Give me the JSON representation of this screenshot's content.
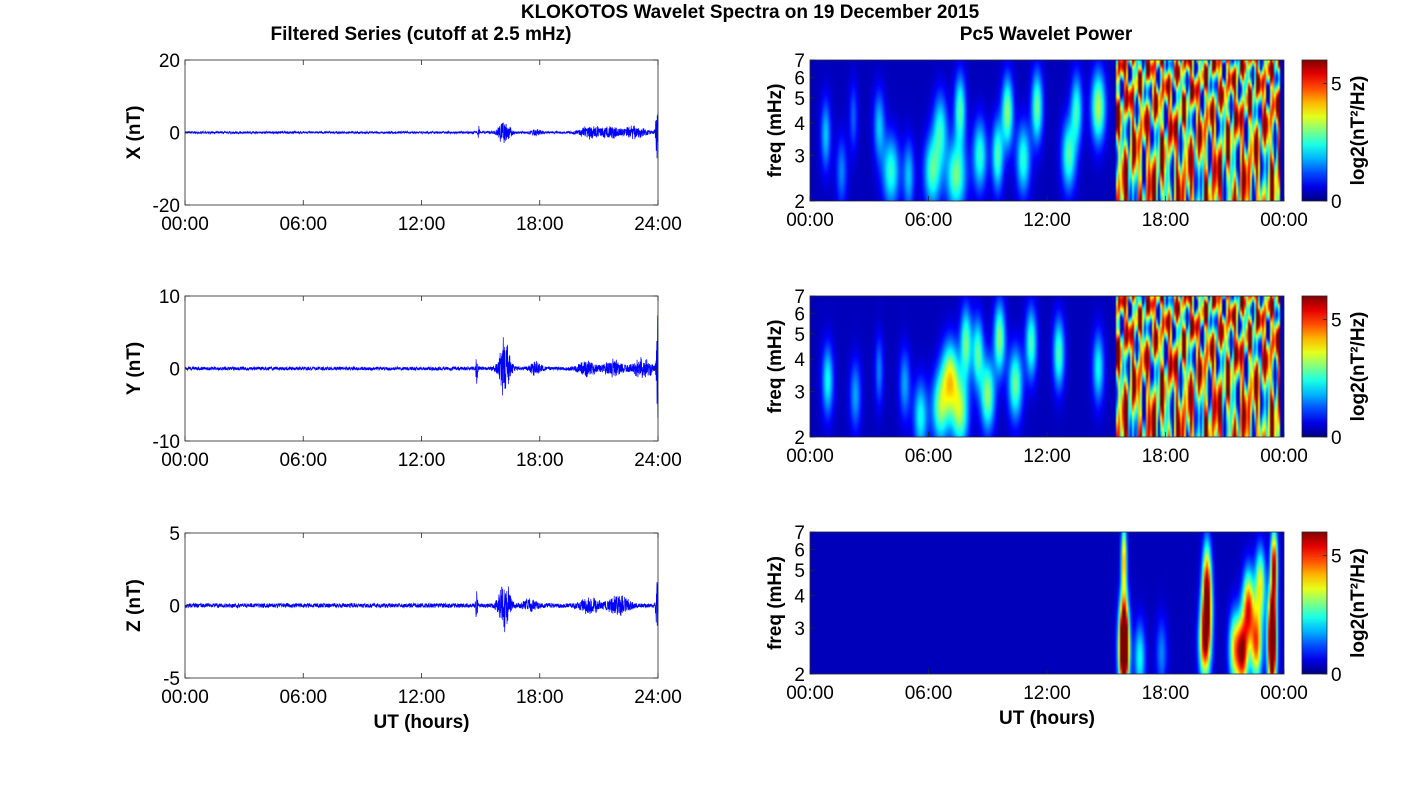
{
  "figure": {
    "title": "KLOKOTOS Wavelet Spectra on 19 December 2015",
    "left_column_title": "Filtered Series (cutoff at 2.5 mHz)",
    "right_column_title": "Pc5 Wavelet Power"
  },
  "chart_data": [
    {
      "type": "line",
      "component": "X",
      "ylabel": "X (nT)",
      "xlabel": "",
      "ylim": [
        -20,
        20
      ],
      "yticks": [
        -20,
        0,
        20
      ],
      "xlim": [
        0,
        24
      ],
      "xticks": [
        "00:00",
        "06:00",
        "12:00",
        "18:00",
        "24:00"
      ],
      "series": [
        {
          "color": "#0000ff",
          "noise_amplitude": 0.25
        }
      ],
      "bursts": [
        {
          "t": 14.9,
          "amp": 2.0,
          "width": 0.05
        },
        {
          "t": 16.2,
          "amp": 4.0,
          "width": 0.3
        },
        {
          "t": 17.8,
          "amp": 0.8,
          "width": 0.3
        },
        {
          "t": 20.6,
          "amp": 1.8,
          "width": 0.6
        },
        {
          "t": 21.6,
          "amp": 1.6,
          "width": 0.5
        },
        {
          "t": 22.8,
          "amp": 1.8,
          "width": 0.6
        },
        {
          "t": 23.95,
          "amp": 8.0,
          "width": 0.08
        }
      ]
    },
    {
      "type": "line",
      "component": "Y",
      "ylabel": "Y (nT)",
      "xlabel": "",
      "ylim": [
        -10,
        10
      ],
      "yticks": [
        -10,
        0,
        10
      ],
      "xlim": [
        0,
        24
      ],
      "xticks": [
        "00:00",
        "06:00",
        "12:00",
        "18:00",
        "24:00"
      ],
      "series": [
        {
          "color": "#0000ff",
          "noise_amplitude": 0.2
        }
      ],
      "bursts": [
        {
          "t": 14.8,
          "amp": 2.5,
          "width": 0.05
        },
        {
          "t": 16.2,
          "amp": 4.5,
          "width": 0.3
        },
        {
          "t": 17.8,
          "amp": 1.0,
          "width": 0.3
        },
        {
          "t": 20.4,
          "amp": 1.0,
          "width": 0.5
        },
        {
          "t": 21.7,
          "amp": 1.2,
          "width": 0.5
        },
        {
          "t": 23.2,
          "amp": 1.4,
          "width": 0.6
        },
        {
          "t": 23.97,
          "amp": 8.0,
          "width": 0.06
        }
      ]
    },
    {
      "type": "line",
      "component": "Z",
      "ylabel": "Z (nT)",
      "xlabel": "UT (hours)",
      "ylim": [
        -5,
        5
      ],
      "yticks": [
        -5,
        0,
        5
      ],
      "xlim": [
        0,
        24
      ],
      "xticks": [
        "00:00",
        "06:00",
        "12:00",
        "18:00",
        "24:00"
      ],
      "series": [
        {
          "color": "#0000ff",
          "noise_amplitude": 0.12
        }
      ],
      "bursts": [
        {
          "t": 14.8,
          "amp": 1.2,
          "width": 0.05
        },
        {
          "t": 16.2,
          "amp": 2.0,
          "width": 0.3
        },
        {
          "t": 17.5,
          "amp": 0.4,
          "width": 0.4
        },
        {
          "t": 20.5,
          "amp": 0.6,
          "width": 0.5
        },
        {
          "t": 22.0,
          "amp": 0.7,
          "width": 0.6
        },
        {
          "t": 23.95,
          "amp": 2.8,
          "width": 0.06
        }
      ]
    },
    {
      "type": "heatmap",
      "component": "X",
      "ylabel": "freq (mHz)",
      "xlabel": "",
      "y_scale": "log",
      "ylim": [
        2,
        7
      ],
      "yticks": [
        2,
        3,
        4,
        5,
        6,
        7
      ],
      "xlim": [
        0,
        24
      ],
      "xticks": [
        "00:00",
        "06:00",
        "12:00",
        "18:00",
        "00:00"
      ],
      "colormap": "jet",
      "colorbar": {
        "label": "log2(nT²/Hz)",
        "range": [
          0,
          6
        ],
        "ticks": [
          0,
          5
        ]
      },
      "saturated_from": 15.5,
      "saturated_to": 23.8,
      "blobs": [
        {
          "t": 0.8,
          "f": 3.6,
          "s": 1.6,
          "dt": 0.18
        },
        {
          "t": 1.6,
          "f": 2.6,
          "s": 1.2,
          "dt": 0.2
        },
        {
          "t": 2.2,
          "f": 4.2,
          "s": 1.0,
          "dt": 0.15
        },
        {
          "t": 3.5,
          "f": 3.9,
          "s": 1.6,
          "dt": 0.2
        },
        {
          "t": 4.1,
          "f": 2.6,
          "s": 2.2,
          "dt": 0.3
        },
        {
          "t": 5.0,
          "f": 2.5,
          "s": 1.6,
          "dt": 0.2
        },
        {
          "t": 6.2,
          "f": 2.6,
          "s": 2.4,
          "dt": 0.3
        },
        {
          "t": 6.6,
          "f": 3.8,
          "s": 2.0,
          "dt": 0.25
        },
        {
          "t": 7.4,
          "f": 2.5,
          "s": 2.6,
          "dt": 0.35
        },
        {
          "t": 7.6,
          "f": 4.5,
          "s": 2.4,
          "dt": 0.2
        },
        {
          "t": 8.6,
          "f": 3.0,
          "s": 2.2,
          "dt": 0.25
        },
        {
          "t": 9.5,
          "f": 3.0,
          "s": 2.4,
          "dt": 0.2
        },
        {
          "t": 10.0,
          "f": 4.4,
          "s": 2.8,
          "dt": 0.2
        },
        {
          "t": 10.8,
          "f": 2.9,
          "s": 2.2,
          "dt": 0.25
        },
        {
          "t": 11.5,
          "f": 4.6,
          "s": 2.6,
          "dt": 0.2
        },
        {
          "t": 13.1,
          "f": 3.0,
          "s": 2.4,
          "dt": 0.25
        },
        {
          "t": 13.5,
          "f": 4.5,
          "s": 2.2,
          "dt": 0.2
        },
        {
          "t": 14.6,
          "f": 4.6,
          "s": 3.0,
          "dt": 0.25
        }
      ]
    },
    {
      "type": "heatmap",
      "component": "Y",
      "ylabel": "freq (mHz)",
      "xlabel": "",
      "y_scale": "log",
      "ylim": [
        2,
        7
      ],
      "yticks": [
        2,
        3,
        4,
        5,
        6,
        7
      ],
      "xlim": [
        0,
        24
      ],
      "xticks": [
        "00:00",
        "06:00",
        "12:00",
        "18:00",
        "00:00"
      ],
      "colormap": "jet",
      "colorbar": {
        "label": "log2(nT²/Hz)",
        "range": [
          0,
          6
        ],
        "ticks": [
          0,
          5
        ]
      },
      "saturated_from": 15.5,
      "saturated_to": 23.8,
      "blobs": [
        {
          "t": 0.9,
          "f": 3.3,
          "s": 2.0,
          "dt": 0.2
        },
        {
          "t": 2.3,
          "f": 2.9,
          "s": 1.4,
          "dt": 0.2
        },
        {
          "t": 3.5,
          "f": 3.6,
          "s": 1.2,
          "dt": 0.15
        },
        {
          "t": 4.8,
          "f": 3.2,
          "s": 1.4,
          "dt": 0.2
        },
        {
          "t": 5.6,
          "f": 2.4,
          "s": 2.0,
          "dt": 0.25
        },
        {
          "t": 6.6,
          "f": 2.6,
          "s": 2.6,
          "dt": 0.3
        },
        {
          "t": 7.1,
          "f": 3.4,
          "s": 3.2,
          "dt": 0.3
        },
        {
          "t": 7.6,
          "f": 2.5,
          "s": 2.8,
          "dt": 0.3
        },
        {
          "t": 7.9,
          "f": 4.6,
          "s": 2.6,
          "dt": 0.2
        },
        {
          "t": 8.5,
          "f": 4.2,
          "s": 2.4,
          "dt": 0.2
        },
        {
          "t": 9.0,
          "f": 2.9,
          "s": 2.8,
          "dt": 0.25
        },
        {
          "t": 9.6,
          "f": 4.8,
          "s": 2.8,
          "dt": 0.2
        },
        {
          "t": 10.4,
          "f": 3.2,
          "s": 2.6,
          "dt": 0.25
        },
        {
          "t": 11.2,
          "f": 4.6,
          "s": 2.4,
          "dt": 0.2
        },
        {
          "t": 12.6,
          "f": 4.2,
          "s": 2.4,
          "dt": 0.2
        },
        {
          "t": 14.6,
          "f": 3.7,
          "s": 2.0,
          "dt": 0.2
        }
      ]
    },
    {
      "type": "heatmap",
      "component": "Z",
      "ylabel": "freq (mHz)",
      "xlabel": "UT (hours)",
      "y_scale": "log",
      "ylim": [
        2,
        7
      ],
      "yticks": [
        2,
        3,
        4,
        5,
        6,
        7
      ],
      "xlim": [
        0,
        24
      ],
      "xticks": [
        "00:00",
        "06:00",
        "12:00",
        "18:00",
        "00:00"
      ],
      "colormap": "jet",
      "colorbar": {
        "label": "log2(nT²/Hz)",
        "range": [
          0,
          6
        ],
        "ticks": [
          0,
          5
        ]
      },
      "saturated_from": null,
      "saturated_to": null,
      "blobs": [
        {
          "t": 15.9,
          "f": 2.3,
          "s": 6.0,
          "dt": 0.18
        },
        {
          "t": 15.9,
          "f": 3.0,
          "s": 5.6,
          "dt": 0.16
        },
        {
          "t": 15.9,
          "f": 5.5,
          "s": 4.0,
          "dt": 0.1
        },
        {
          "t": 16.7,
          "f": 2.3,
          "s": 2.0,
          "dt": 0.2
        },
        {
          "t": 17.8,
          "f": 2.4,
          "s": 1.2,
          "dt": 0.2
        },
        {
          "t": 20.0,
          "f": 2.6,
          "s": 4.8,
          "dt": 0.2
        },
        {
          "t": 20.1,
          "f": 3.6,
          "s": 4.6,
          "dt": 0.18
        },
        {
          "t": 20.1,
          "f": 4.9,
          "s": 3.2,
          "dt": 0.15
        },
        {
          "t": 21.5,
          "f": 2.5,
          "s": 3.4,
          "dt": 0.2
        },
        {
          "t": 21.9,
          "f": 2.4,
          "s": 5.2,
          "dt": 0.2
        },
        {
          "t": 22.2,
          "f": 3.6,
          "s": 4.6,
          "dt": 0.2
        },
        {
          "t": 22.6,
          "f": 2.6,
          "s": 4.4,
          "dt": 0.2
        },
        {
          "t": 22.8,
          "f": 4.4,
          "s": 3.4,
          "dt": 0.18
        },
        {
          "t": 23.4,
          "f": 2.3,
          "s": 6.0,
          "dt": 0.15
        },
        {
          "t": 23.4,
          "f": 3.2,
          "s": 5.6,
          "dt": 0.15
        },
        {
          "t": 23.5,
          "f": 5.2,
          "s": 5.4,
          "dt": 0.12
        }
      ]
    }
  ]
}
